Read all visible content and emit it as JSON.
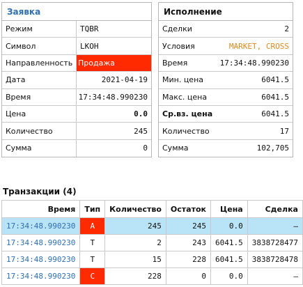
{
  "order": {
    "title": "Заявка",
    "rows": [
      {
        "label": "Режим",
        "value": "TQBR"
      },
      {
        "label": "Символ",
        "value": "LKOH"
      },
      {
        "label": "Направленность",
        "value": "Продажа"
      },
      {
        "label": "Дата",
        "value": "2021-04-19"
      },
      {
        "label": "Время",
        "value": "17:34:48.990230"
      },
      {
        "label": "Цена",
        "value": "0.0"
      },
      {
        "label": "Количество",
        "value": "245"
      },
      {
        "label": "Сумма",
        "value": "0"
      }
    ]
  },
  "execution": {
    "title": "Исполнение",
    "rows": [
      {
        "label": "Сделки",
        "value": "2"
      },
      {
        "label": "Условия",
        "value": "MARKET, CROSS"
      },
      {
        "label": "Время",
        "value": "17:34:48.990230"
      },
      {
        "label": "Мин. цена",
        "value": "6041.5"
      },
      {
        "label": "Макс. цена",
        "value": "6041.5"
      },
      {
        "label": "Ср.вз. цена",
        "value": "6041.5"
      },
      {
        "label": "Количество",
        "value": "17"
      },
      {
        "label": "Сумма",
        "value": "102,705"
      }
    ]
  },
  "transactions": {
    "title": "Транзакции (4)",
    "headers": [
      "Время",
      "Тип",
      "Количество",
      "Остаток",
      "Цена",
      "Сделка"
    ],
    "rows": [
      {
        "time": "17:34:48.990230",
        "type": "A",
        "qty": "245",
        "rest": "245",
        "price": "0.0",
        "deal": "–"
      },
      {
        "time": "17:34:48.990230",
        "type": "T",
        "qty": "2",
        "rest": "243",
        "price": "6041.5",
        "deal": "3838728477"
      },
      {
        "time": "17:34:48.990230",
        "type": "T",
        "qty": "15",
        "rest": "228",
        "price": "6041.5",
        "deal": "3838728478"
      },
      {
        "time": "17:34:48.990230",
        "type": "C",
        "qty": "228",
        "rest": "0",
        "price": "0.0",
        "deal": "–"
      }
    ]
  },
  "colors": {
    "accent_blue": "#2f6fb3",
    "sell_red": "#ff2a00",
    "conditions_orange": "#e08a1e",
    "selected_row": "#b9e3f6"
  }
}
